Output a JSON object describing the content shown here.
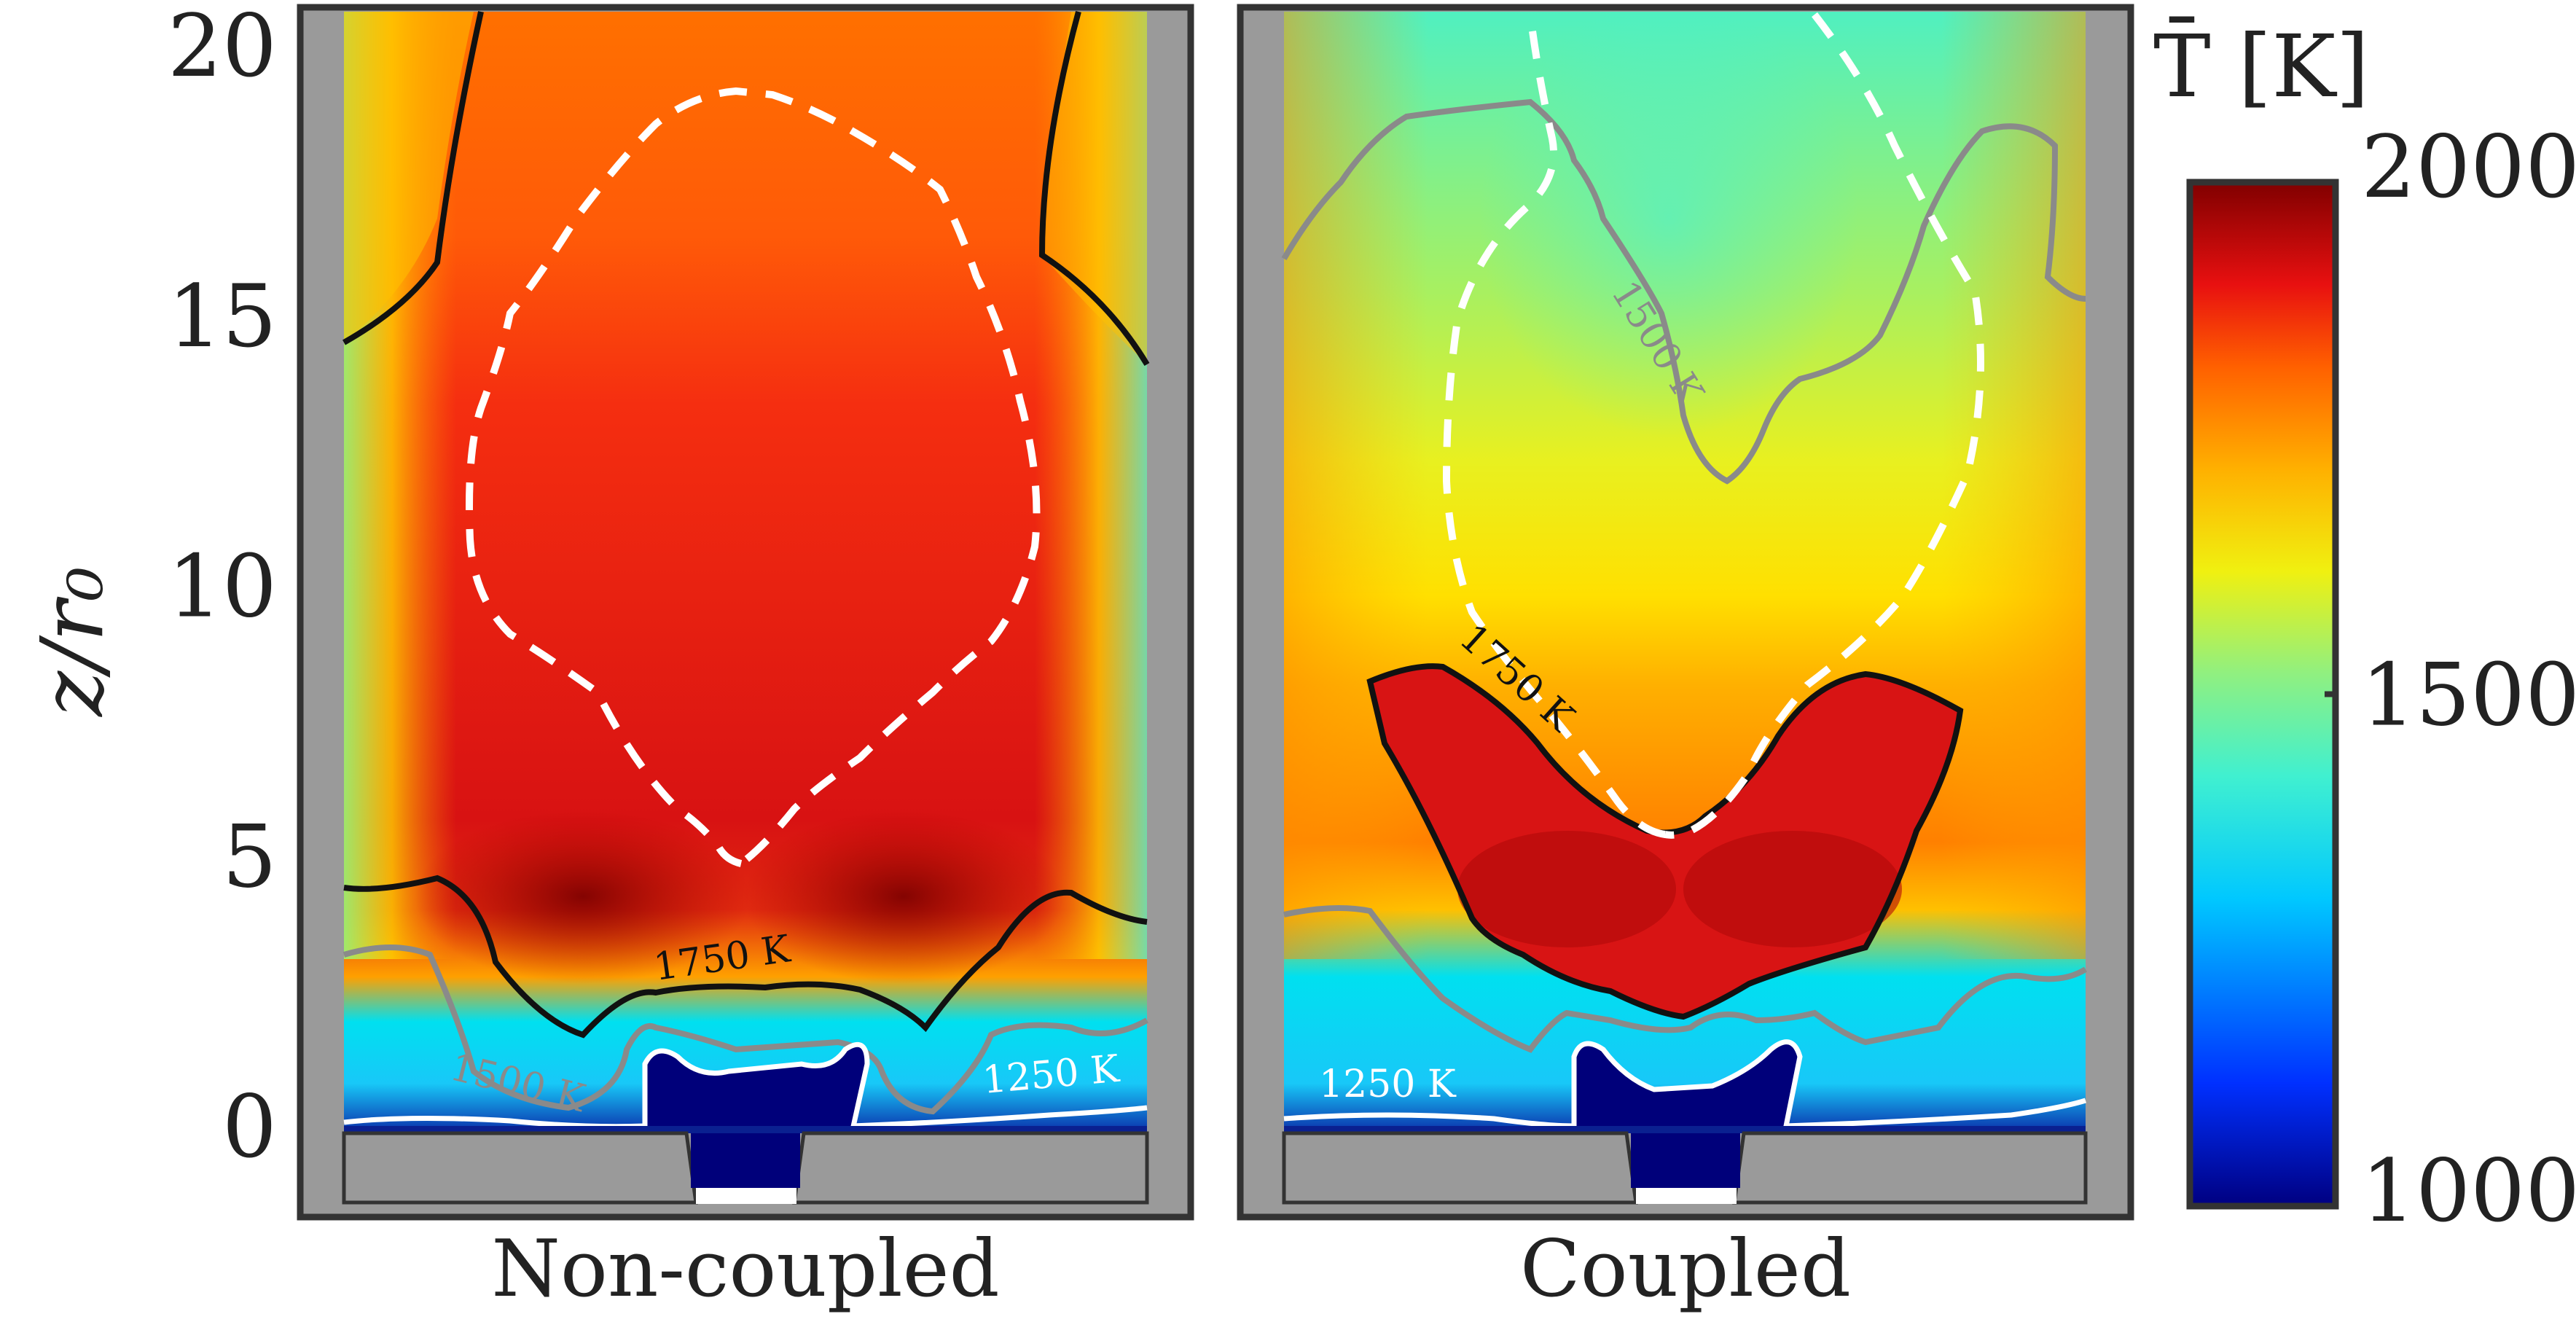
{
  "chart_data": [
    {
      "type": "heatmap",
      "panel": "Non-coupled",
      "xlabel": "Non-coupled",
      "ylabel": "z/r₀",
      "ylim": [
        0,
        20
      ],
      "y_ticks": [
        "0",
        "5",
        "10",
        "15",
        "20"
      ],
      "contours": [
        {
          "label": "1750 K",
          "level": 1750,
          "color": "#111111"
        },
        {
          "label": "1500 K",
          "level": 1500,
          "color": "#888888"
        },
        {
          "label": "1250 K",
          "level": 1250,
          "color": "#ffffff"
        }
      ],
      "peak_region": "red core (~1850 K) spanning z/r₀ ≈ 3 to 20"
    },
    {
      "type": "heatmap",
      "panel": "Coupled",
      "xlabel": "Coupled",
      "ylim": [
        0,
        20
      ],
      "contours": [
        {
          "label": "1750 K",
          "level": 1750,
          "color": "#111111"
        },
        {
          "label": "1500 K",
          "level": 1500,
          "color": "#888888"
        },
        {
          "label": "1250 K",
          "level": 1250,
          "color": "#ffffff"
        }
      ],
      "peak_region": "red V-shaped zone (~1850 K) spanning z/r₀ ≈ 2 to 8"
    }
  ],
  "colorbar": {
    "title": "T̄ [K]",
    "min": 1000,
    "max": 2000,
    "tick_labels": [
      "2000",
      "1500",
      "1000"
    ],
    "tick_values": [
      2000,
      1500,
      1000
    ],
    "colormap": [
      "#000080",
      "#0040ff",
      "#00e0ff",
      "#80ff80",
      "#ffff00",
      "#ff8000",
      "#e01010",
      "#800000"
    ]
  },
  "colors": {
    "wall": "#9a9a9a",
    "frame": "#333333",
    "dashed_contour": "#ffffff",
    "nozzle": "#00007a"
  }
}
